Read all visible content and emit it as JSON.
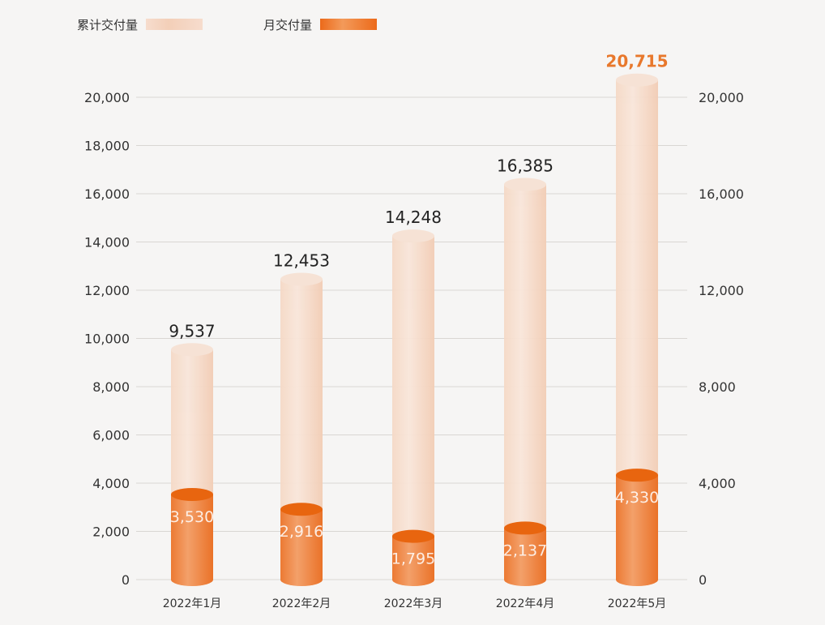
{
  "legend": {
    "cumulative": "累计交付量",
    "monthly": "月交付量"
  },
  "colors": {
    "cumulative": "#f3cfb8",
    "monthly": "#ee8a45",
    "monthly_cap": "#e8650f",
    "highlight": "#e8782c"
  },
  "chart_data": {
    "type": "bar",
    "categories": [
      "2022年1月",
      "2022年2月",
      "2022年3月",
      "2022年4月",
      "2022年5月"
    ],
    "series": [
      {
        "name": "累计交付量",
        "values": [
          9537,
          12453,
          14248,
          16385,
          20715
        ],
        "labels": [
          "9,537",
          "12,453",
          "14,248",
          "16,385",
          "20,715"
        ]
      },
      {
        "name": "月交付量",
        "values": [
          3530,
          2916,
          1795,
          2137,
          4330
        ],
        "labels": [
          "3,530",
          "2,916",
          "1,795",
          "2,137",
          "4,330"
        ]
      }
    ],
    "left_axis": {
      "ylim": [
        0,
        20000
      ],
      "ticks": [
        "0",
        "2,000",
        "4,000",
        "6,000",
        "8,000",
        "10,000",
        "12,000",
        "14,000",
        "16,000",
        "18,000",
        "20,000"
      ]
    },
    "right_axis": {
      "ylim": [
        0,
        20000
      ],
      "ticks": [
        "0",
        "4,000",
        "8,000",
        "12,000",
        "16,000",
        "20,000"
      ]
    },
    "grid": true,
    "legend_position": "top-left"
  }
}
